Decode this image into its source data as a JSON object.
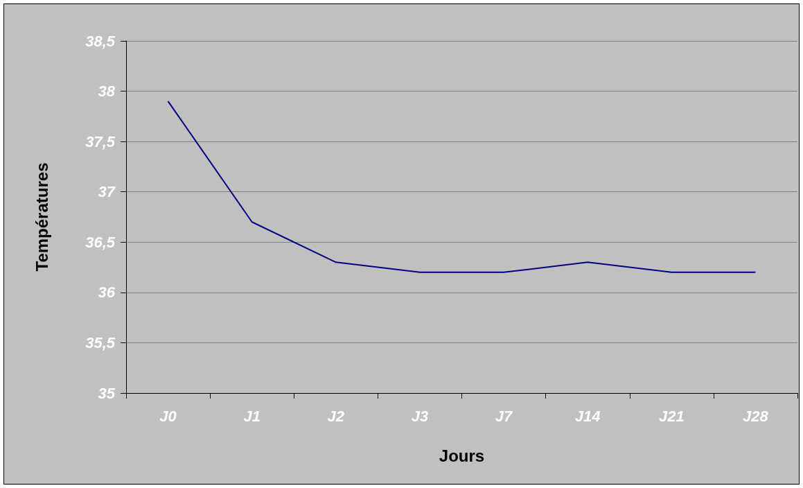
{
  "chart_data": {
    "type": "line",
    "xlabel": "Jours",
    "ylabel": "Températures",
    "categories": [
      "J0",
      "J1",
      "J2",
      "J3",
      "J7",
      "J14",
      "J21",
      "J28"
    ],
    "series": [
      {
        "color": "#000080",
        "values": [
          37.9,
          36.7,
          36.3,
          36.2,
          36.2,
          36.3,
          36.2,
          36.2
        ]
      }
    ],
    "ylim": [
      35,
      38.5
    ],
    "yticks": [
      35,
      {
        "value": 35.5,
        "label": "35,5"
      },
      36,
      {
        "value": 36.5,
        "label": "36,5"
      },
      37,
      {
        "value": 37.5,
        "label": "37,5"
      },
      38,
      {
        "value": 38.5,
        "label": "38,5"
      }
    ],
    "grid": "y",
    "marker": "none",
    "line_style": "solid"
  }
}
